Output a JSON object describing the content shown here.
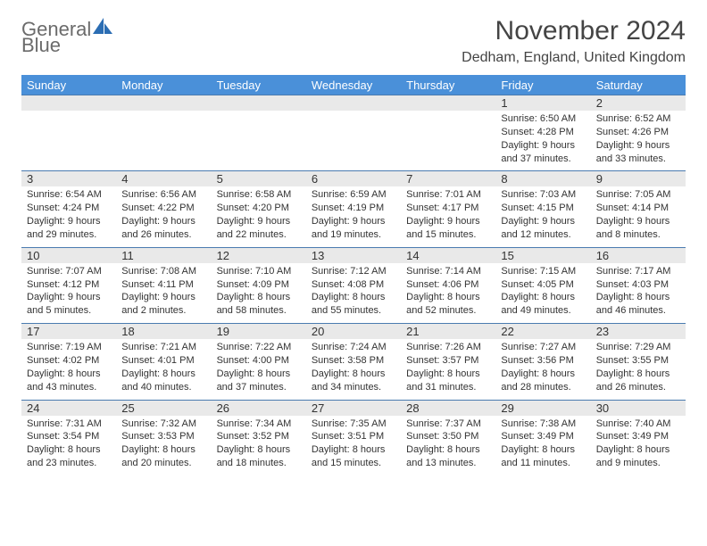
{
  "brand": {
    "text1": "General",
    "text2": "Blue",
    "text1_color": "#6b6b6b",
    "text2_color": "#2b6db3"
  },
  "title": "November 2024",
  "location": "Dedham, England, United Kingdom",
  "colors": {
    "header_bg": "#4a90d9",
    "header_text": "#ffffff",
    "cell_border": "#4a7bb0",
    "daynum_bg": "#e9e9e9",
    "text": "#333333",
    "background": "#ffffff"
  },
  "fonts": {
    "title_size": 30,
    "location_size": 16,
    "weekday_size": 13,
    "daynum_size": 13,
    "body_size": 11
  },
  "weekdays": [
    "Sunday",
    "Monday",
    "Tuesday",
    "Wednesday",
    "Thursday",
    "Friday",
    "Saturday"
  ],
  "weeks": [
    [
      {
        "n": "",
        "sr": "",
        "ss": "",
        "d1": "",
        "d2": ""
      },
      {
        "n": "",
        "sr": "",
        "ss": "",
        "d1": "",
        "d2": ""
      },
      {
        "n": "",
        "sr": "",
        "ss": "",
        "d1": "",
        "d2": ""
      },
      {
        "n": "",
        "sr": "",
        "ss": "",
        "d1": "",
        "d2": ""
      },
      {
        "n": "",
        "sr": "",
        "ss": "",
        "d1": "",
        "d2": ""
      },
      {
        "n": "1",
        "sr": "Sunrise: 6:50 AM",
        "ss": "Sunset: 4:28 PM",
        "d1": "Daylight: 9 hours",
        "d2": "and 37 minutes."
      },
      {
        "n": "2",
        "sr": "Sunrise: 6:52 AM",
        "ss": "Sunset: 4:26 PM",
        "d1": "Daylight: 9 hours",
        "d2": "and 33 minutes."
      }
    ],
    [
      {
        "n": "3",
        "sr": "Sunrise: 6:54 AM",
        "ss": "Sunset: 4:24 PM",
        "d1": "Daylight: 9 hours",
        "d2": "and 29 minutes."
      },
      {
        "n": "4",
        "sr": "Sunrise: 6:56 AM",
        "ss": "Sunset: 4:22 PM",
        "d1": "Daylight: 9 hours",
        "d2": "and 26 minutes."
      },
      {
        "n": "5",
        "sr": "Sunrise: 6:58 AM",
        "ss": "Sunset: 4:20 PM",
        "d1": "Daylight: 9 hours",
        "d2": "and 22 minutes."
      },
      {
        "n": "6",
        "sr": "Sunrise: 6:59 AM",
        "ss": "Sunset: 4:19 PM",
        "d1": "Daylight: 9 hours",
        "d2": "and 19 minutes."
      },
      {
        "n": "7",
        "sr": "Sunrise: 7:01 AM",
        "ss": "Sunset: 4:17 PM",
        "d1": "Daylight: 9 hours",
        "d2": "and 15 minutes."
      },
      {
        "n": "8",
        "sr": "Sunrise: 7:03 AM",
        "ss": "Sunset: 4:15 PM",
        "d1": "Daylight: 9 hours",
        "d2": "and 12 minutes."
      },
      {
        "n": "9",
        "sr": "Sunrise: 7:05 AM",
        "ss": "Sunset: 4:14 PM",
        "d1": "Daylight: 9 hours",
        "d2": "and 8 minutes."
      }
    ],
    [
      {
        "n": "10",
        "sr": "Sunrise: 7:07 AM",
        "ss": "Sunset: 4:12 PM",
        "d1": "Daylight: 9 hours",
        "d2": "and 5 minutes."
      },
      {
        "n": "11",
        "sr": "Sunrise: 7:08 AM",
        "ss": "Sunset: 4:11 PM",
        "d1": "Daylight: 9 hours",
        "d2": "and 2 minutes."
      },
      {
        "n": "12",
        "sr": "Sunrise: 7:10 AM",
        "ss": "Sunset: 4:09 PM",
        "d1": "Daylight: 8 hours",
        "d2": "and 58 minutes."
      },
      {
        "n": "13",
        "sr": "Sunrise: 7:12 AM",
        "ss": "Sunset: 4:08 PM",
        "d1": "Daylight: 8 hours",
        "d2": "and 55 minutes."
      },
      {
        "n": "14",
        "sr": "Sunrise: 7:14 AM",
        "ss": "Sunset: 4:06 PM",
        "d1": "Daylight: 8 hours",
        "d2": "and 52 minutes."
      },
      {
        "n": "15",
        "sr": "Sunrise: 7:15 AM",
        "ss": "Sunset: 4:05 PM",
        "d1": "Daylight: 8 hours",
        "d2": "and 49 minutes."
      },
      {
        "n": "16",
        "sr": "Sunrise: 7:17 AM",
        "ss": "Sunset: 4:03 PM",
        "d1": "Daylight: 8 hours",
        "d2": "and 46 minutes."
      }
    ],
    [
      {
        "n": "17",
        "sr": "Sunrise: 7:19 AM",
        "ss": "Sunset: 4:02 PM",
        "d1": "Daylight: 8 hours",
        "d2": "and 43 minutes."
      },
      {
        "n": "18",
        "sr": "Sunrise: 7:21 AM",
        "ss": "Sunset: 4:01 PM",
        "d1": "Daylight: 8 hours",
        "d2": "and 40 minutes."
      },
      {
        "n": "19",
        "sr": "Sunrise: 7:22 AM",
        "ss": "Sunset: 4:00 PM",
        "d1": "Daylight: 8 hours",
        "d2": "and 37 minutes."
      },
      {
        "n": "20",
        "sr": "Sunrise: 7:24 AM",
        "ss": "Sunset: 3:58 PM",
        "d1": "Daylight: 8 hours",
        "d2": "and 34 minutes."
      },
      {
        "n": "21",
        "sr": "Sunrise: 7:26 AM",
        "ss": "Sunset: 3:57 PM",
        "d1": "Daylight: 8 hours",
        "d2": "and 31 minutes."
      },
      {
        "n": "22",
        "sr": "Sunrise: 7:27 AM",
        "ss": "Sunset: 3:56 PM",
        "d1": "Daylight: 8 hours",
        "d2": "and 28 minutes."
      },
      {
        "n": "23",
        "sr": "Sunrise: 7:29 AM",
        "ss": "Sunset: 3:55 PM",
        "d1": "Daylight: 8 hours",
        "d2": "and 26 minutes."
      }
    ],
    [
      {
        "n": "24",
        "sr": "Sunrise: 7:31 AM",
        "ss": "Sunset: 3:54 PM",
        "d1": "Daylight: 8 hours",
        "d2": "and 23 minutes."
      },
      {
        "n": "25",
        "sr": "Sunrise: 7:32 AM",
        "ss": "Sunset: 3:53 PM",
        "d1": "Daylight: 8 hours",
        "d2": "and 20 minutes."
      },
      {
        "n": "26",
        "sr": "Sunrise: 7:34 AM",
        "ss": "Sunset: 3:52 PM",
        "d1": "Daylight: 8 hours",
        "d2": "and 18 minutes."
      },
      {
        "n": "27",
        "sr": "Sunrise: 7:35 AM",
        "ss": "Sunset: 3:51 PM",
        "d1": "Daylight: 8 hours",
        "d2": "and 15 minutes."
      },
      {
        "n": "28",
        "sr": "Sunrise: 7:37 AM",
        "ss": "Sunset: 3:50 PM",
        "d1": "Daylight: 8 hours",
        "d2": "and 13 minutes."
      },
      {
        "n": "29",
        "sr": "Sunrise: 7:38 AM",
        "ss": "Sunset: 3:49 PM",
        "d1": "Daylight: 8 hours",
        "d2": "and 11 minutes."
      },
      {
        "n": "30",
        "sr": "Sunrise: 7:40 AM",
        "ss": "Sunset: 3:49 PM",
        "d1": "Daylight: 8 hours",
        "d2": "and 9 minutes."
      }
    ]
  ]
}
